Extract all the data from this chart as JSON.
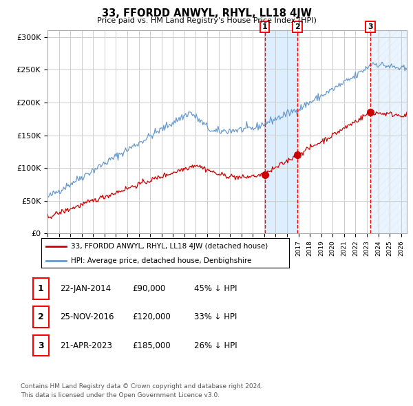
{
  "title": "33, FFORDD ANWYL, RHYL, LL18 4JW",
  "subtitle": "Price paid vs. HM Land Registry's House Price Index (HPI)",
  "legend_line1": "33, FFORDD ANWYL, RHYL, LL18 4JW (detached house)",
  "legend_line2": "HPI: Average price, detached house, Denbighshire",
  "footer1": "Contains HM Land Registry data © Crown copyright and database right 2024.",
  "footer2": "This data is licensed under the Open Government Licence v3.0.",
  "transactions": [
    {
      "label": "1",
      "date": "22-JAN-2014",
      "price": "£90,000",
      "pct": "45% ↓ HPI",
      "x_year": 2014.05,
      "y_val": 90000
    },
    {
      "label": "2",
      "date": "25-NOV-2016",
      "price": "£120,000",
      "pct": "33% ↓ HPI",
      "x_year": 2016.9,
      "y_val": 120000
    },
    {
      "label": "3",
      "date": "21-APR-2023",
      "price": "£185,000",
      "pct": "26% ↓ HPI",
      "x_year": 2023.3,
      "y_val": 185000
    }
  ],
  "hpi_color": "#6699cc",
  "price_color": "#cc0000",
  "grid_color": "#cccccc",
  "shade_color": "#ddeeff",
  "ylim": [
    0,
    310000
  ],
  "xlim_start": 1995.0,
  "xlim_end": 2026.5
}
